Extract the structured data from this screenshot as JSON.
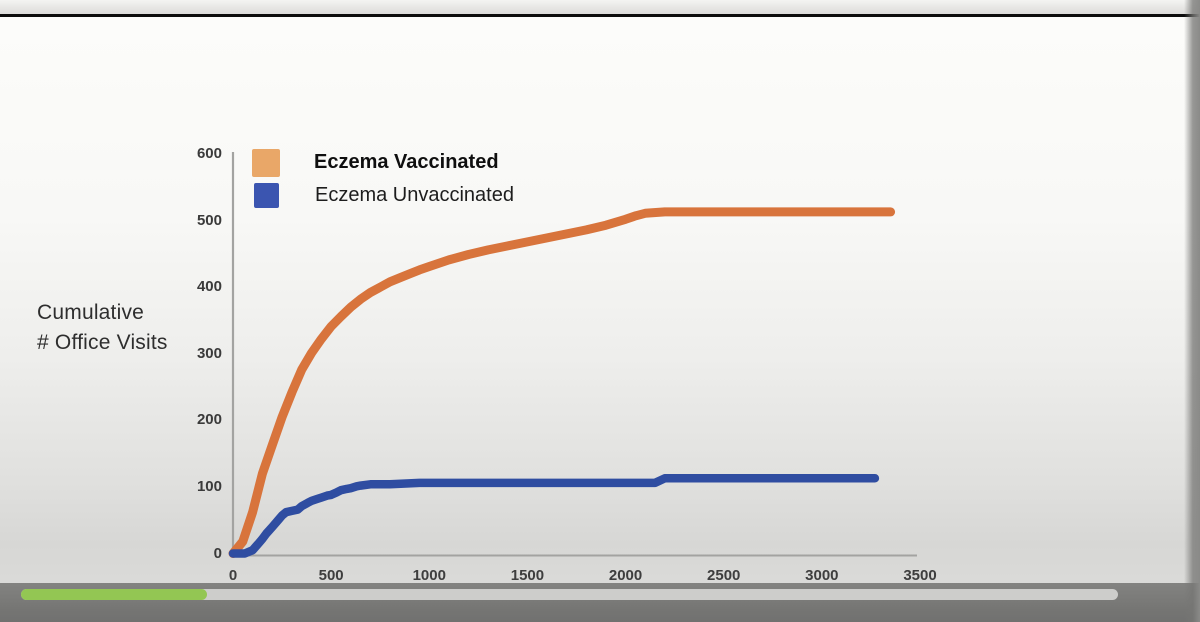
{
  "chart_data": {
    "type": "line",
    "title": "",
    "ylabel_lines": [
      "Cumulative",
      "# Office Visits"
    ],
    "xlabel": "",
    "xlim": [
      0,
      3500
    ],
    "ylim": [
      0,
      600
    ],
    "x_ticks": [
      0,
      500,
      1000,
      1500,
      2000,
      2500,
      3000,
      3500
    ],
    "y_ticks": [
      0,
      100,
      200,
      300,
      400,
      500,
      600
    ],
    "grid": false,
    "legend_position": "top-left",
    "series": [
      {
        "name": "Eczema Vaccinated",
        "color": "#d8743c",
        "swatch_color": "#e9a768",
        "bold_label": true,
        "points": [
          [
            0,
            0
          ],
          [
            50,
            18
          ],
          [
            100,
            62
          ],
          [
            150,
            120
          ],
          [
            200,
            163
          ],
          [
            250,
            205
          ],
          [
            300,
            242
          ],
          [
            350,
            276
          ],
          [
            400,
            301
          ],
          [
            450,
            322
          ],
          [
            500,
            341
          ],
          [
            550,
            356
          ],
          [
            600,
            370
          ],
          [
            650,
            382
          ],
          [
            700,
            392
          ],
          [
            750,
            400
          ],
          [
            800,
            408
          ],
          [
            850,
            414
          ],
          [
            900,
            420
          ],
          [
            950,
            426
          ],
          [
            1000,
            431
          ],
          [
            1100,
            441
          ],
          [
            1200,
            449
          ],
          [
            1300,
            456
          ],
          [
            1400,
            462
          ],
          [
            1500,
            468
          ],
          [
            1600,
            474
          ],
          [
            1700,
            480
          ],
          [
            1800,
            486
          ],
          [
            1900,
            493
          ],
          [
            2000,
            502
          ],
          [
            2050,
            507
          ],
          [
            2100,
            511
          ],
          [
            2200,
            513
          ],
          [
            2400,
            513
          ],
          [
            2600,
            513
          ],
          [
            2800,
            513
          ],
          [
            3000,
            513
          ],
          [
            3200,
            513
          ],
          [
            3350,
            513
          ]
        ]
      },
      {
        "name": "Eczema Unvaccinated",
        "color": "#2f4da1",
        "swatch_color": "#3b55b0",
        "bold_label": false,
        "points": [
          [
            0,
            0
          ],
          [
            60,
            0
          ],
          [
            100,
            5
          ],
          [
            130,
            15
          ],
          [
            150,
            22
          ],
          [
            170,
            30
          ],
          [
            200,
            40
          ],
          [
            230,
            50
          ],
          [
            250,
            57
          ],
          [
            270,
            62
          ],
          [
            300,
            64
          ],
          [
            330,
            66
          ],
          [
            350,
            71
          ],
          [
            380,
            76
          ],
          [
            400,
            79
          ],
          [
            430,
            82
          ],
          [
            450,
            84
          ],
          [
            480,
            87
          ],
          [
            500,
            88
          ],
          [
            530,
            92
          ],
          [
            550,
            95
          ],
          [
            580,
            97
          ],
          [
            600,
            98
          ],
          [
            630,
            101
          ],
          [
            650,
            102
          ],
          [
            700,
            104
          ],
          [
            800,
            104
          ],
          [
            950,
            106
          ],
          [
            1200,
            106
          ],
          [
            1500,
            106
          ],
          [
            2150,
            106
          ],
          [
            2200,
            113
          ],
          [
            2600,
            113
          ],
          [
            3000,
            113
          ],
          [
            3270,
            113
          ]
        ]
      }
    ]
  },
  "video_player": {
    "progress_percent": 17,
    "progress_track_color": "#cdcdcb",
    "progress_fill_color": "#93c653"
  }
}
